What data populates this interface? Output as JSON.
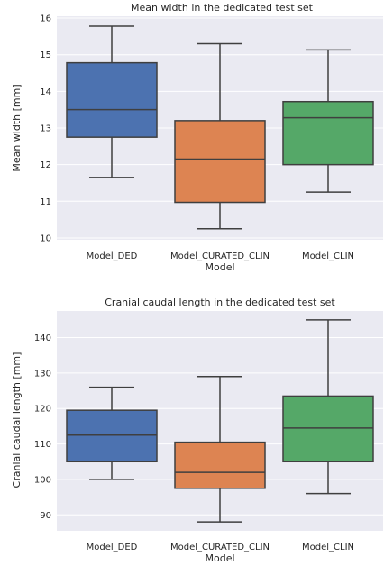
{
  "chart_data": [
    {
      "type": "box",
      "title": "Mean width in the dedicated test set",
      "xlabel": "Model",
      "ylabel": "Mean width [mm]",
      "ylim": [
        9.95,
        16.05
      ],
      "yticks": [
        10,
        11,
        12,
        13,
        14,
        15,
        16
      ],
      "grid": true,
      "categories": [
        "Model_DED",
        "Model_CURATED_CLIN",
        "Model_CLIN"
      ],
      "colors": [
        "#4c72b0",
        "#dd8452",
        "#55a868"
      ],
      "boxes": [
        {
          "whisker_low": 11.65,
          "q1": 12.75,
          "median": 13.5,
          "q3": 14.78,
          "whisker_high": 15.78
        },
        {
          "whisker_low": 10.25,
          "q1": 10.97,
          "median": 12.15,
          "q3": 13.2,
          "whisker_high": 15.3
        },
        {
          "whisker_low": 11.25,
          "q1": 12.0,
          "median": 13.28,
          "q3": 13.72,
          "whisker_high": 15.13
        }
      ]
    },
    {
      "type": "box",
      "title": "Cranial caudal length in the dedicated test set",
      "xlabel": "Model",
      "ylabel": "Cranial caudal length [mm]",
      "ylim": [
        85.5,
        147.5
      ],
      "yticks": [
        90,
        100,
        110,
        120,
        130,
        140
      ],
      "grid": true,
      "categories": [
        "Model_DED",
        "Model_CURATED_CLIN",
        "Model_CLIN"
      ],
      "colors": [
        "#4c72b0",
        "#dd8452",
        "#55a868"
      ],
      "boxes": [
        {
          "whisker_low": 100.0,
          "q1": 105.0,
          "median": 112.5,
          "q3": 119.5,
          "whisker_high": 126.0
        },
        {
          "whisker_low": 88.0,
          "q1": 97.5,
          "median": 102.0,
          "q3": 110.5,
          "whisker_high": 129.0
        },
        {
          "whisker_low": 96.0,
          "q1": 105.0,
          "median": 114.5,
          "q3": 123.5,
          "whisker_high": 145.0
        }
      ]
    }
  ]
}
